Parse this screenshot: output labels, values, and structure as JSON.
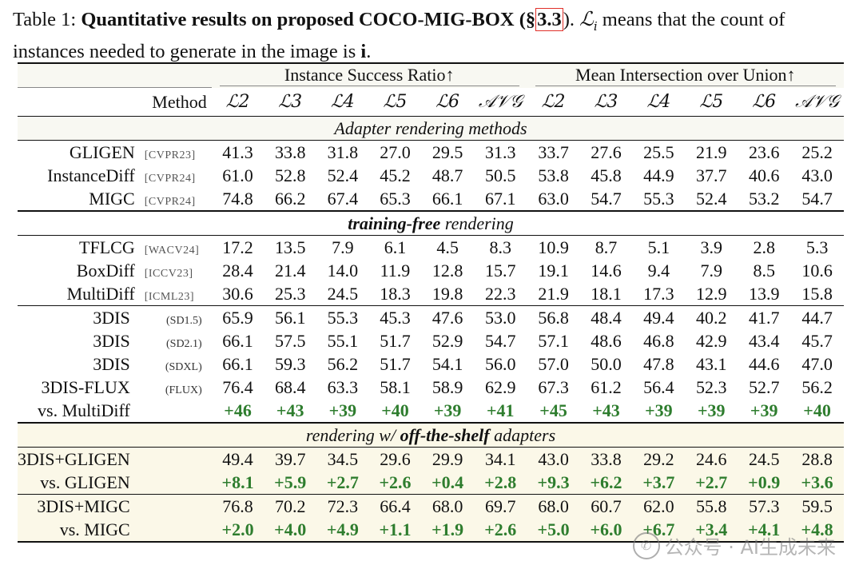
{
  "caption": {
    "label": "Table 1:",
    "title": "Quantitative results on proposed COCO-MIG-BOX (§",
    "ref": "3.3",
    "title_end": ").",
    "math": "ℒ",
    "math_sub": "i",
    "desc1": " means that the count of",
    "desc2": "instances needed to generate in the image is ",
    "desc_bold": "i",
    "desc_end": "."
  },
  "header": {
    "group1": "Instance Success Ratio↑",
    "group2": "Mean Intersection over Union↑",
    "method": "Method",
    "cols": [
      "ℒ2",
      "ℒ3",
      "ℒ4",
      "ℒ5",
      "ℒ6",
      "𝒜𝒱𝒢",
      "ℒ2",
      "ℒ3",
      "ℒ4",
      "ℒ5",
      "ℒ6",
      "𝒜𝒱𝒢"
    ]
  },
  "sections": {
    "adapter": "Adapter rendering methods",
    "training_free_bold": "training-free",
    "training_free_rest": " rendering",
    "offshelf_pre": "rendering w/ ",
    "offshelf_bold": "off-the-shelf",
    "offshelf_post": " adapters"
  },
  "rows": {
    "gligen": {
      "method": "GLIGEN",
      "venue": "[CVPR23]",
      "values": [
        "41.3",
        "33.8",
        "31.8",
        "27.0",
        "29.5",
        "31.3",
        "33.7",
        "27.6",
        "25.5",
        "21.9",
        "23.6",
        "25.2"
      ]
    },
    "instancediff": {
      "method": "InstanceDiff",
      "venue": "[CVPR24]",
      "values": [
        "61.0",
        "52.8",
        "52.4",
        "45.2",
        "48.7",
        "50.5",
        "53.8",
        "45.8",
        "44.9",
        "37.7",
        "40.6",
        "43.0"
      ]
    },
    "migc": {
      "method": "MIGC",
      "venue": "[CVPR24]",
      "values": [
        "74.8",
        "66.2",
        "67.4",
        "65.3",
        "66.1",
        "67.1",
        "63.0",
        "54.7",
        "55.3",
        "52.4",
        "53.2",
        "54.7"
      ]
    },
    "tflcg": {
      "method": "TFLCG",
      "venue": "[WACV24]",
      "values": [
        "17.2",
        "13.5",
        "7.9",
        "6.1",
        "4.5",
        "8.3",
        "10.9",
        "8.7",
        "5.1",
        "3.9",
        "2.8",
        "5.3"
      ]
    },
    "boxdiff": {
      "method": "BoxDiff",
      "venue": "[ICCV23]",
      "values": [
        "28.4",
        "21.4",
        "14.0",
        "11.9",
        "12.8",
        "15.7",
        "19.1",
        "14.6",
        "9.4",
        "7.9",
        "8.5",
        "10.6"
      ]
    },
    "multidiff": {
      "method": "MultiDiff",
      "venue": "[ICML23]",
      "values": [
        "30.6",
        "25.3",
        "24.5",
        "18.3",
        "19.8",
        "22.3",
        "21.9",
        "18.1",
        "17.3",
        "12.9",
        "13.9",
        "15.8"
      ]
    },
    "d3_sd15": {
      "method": "3DIS",
      "venue": "(SD1.5)",
      "values": [
        "65.9",
        "56.1",
        "55.3",
        "45.3",
        "47.6",
        "53.0",
        "56.8",
        "48.4",
        "49.4",
        "40.2",
        "41.7",
        "44.7"
      ]
    },
    "d3_sd21": {
      "method": "3DIS",
      "venue": "(SD2.1)",
      "values": [
        "66.1",
        "57.5",
        "55.1",
        "51.7",
        "52.9",
        "54.7",
        "57.1",
        "48.6",
        "46.8",
        "42.9",
        "43.4",
        "45.7"
      ]
    },
    "d3_sdxl": {
      "method": "3DIS",
      "venue": "(SDXL)",
      "values": [
        "66.1",
        "59.3",
        "56.2",
        "51.7",
        "54.1",
        "56.0",
        "57.0",
        "50.0",
        "47.8",
        "43.1",
        "44.6",
        "47.0"
      ]
    },
    "d3_flux": {
      "method": "3DIS-FLUX",
      "venue": "(FLUX)",
      "values": [
        "76.4",
        "68.4",
        "63.3",
        "58.1",
        "58.9",
        "62.9",
        "67.3",
        "61.2",
        "56.4",
        "52.3",
        "52.7",
        "56.2"
      ]
    },
    "vs_multidiff": {
      "method": "vs. MultiDiff",
      "values": [
        "+46",
        "+43",
        "+39",
        "+40",
        "+39",
        "+41",
        "+45",
        "+43",
        "+39",
        "+39",
        "+39",
        "+40"
      ]
    },
    "d3_gligen": {
      "method": "3DIS+GLIGEN",
      "values": [
        "49.4",
        "39.7",
        "34.5",
        "29.6",
        "29.9",
        "34.1",
        "43.0",
        "33.8",
        "29.2",
        "24.6",
        "24.5",
        "28.8"
      ]
    },
    "vs_gligen": {
      "method": "vs. GLIGEN",
      "values": [
        "+8.1",
        "+5.9",
        "+2.7",
        "+2.6",
        "+0.4",
        "+2.8",
        "+9.3",
        "+6.2",
        "+3.7",
        "+2.7",
        "+0.9",
        "+3.6"
      ]
    },
    "d3_migc": {
      "method": "3DIS+MIGC",
      "values": [
        "76.8",
        "70.2",
        "72.3",
        "66.4",
        "68.0",
        "69.7",
        "68.0",
        "60.7",
        "62.0",
        "55.8",
        "57.3",
        "59.5"
      ]
    },
    "vs_migc": {
      "method": "vs. MIGC",
      "values": [
        "+2.0",
        "+4.0",
        "+4.9",
        "+1.1",
        "+1.9",
        "+2.6",
        "+5.0",
        "+6.0",
        "+6.7",
        "+3.4",
        "+4.1",
        "+4.8"
      ]
    }
  },
  "watermark": {
    "text": "公众号 · AI生成未来",
    "icon": "wechat-icon"
  }
}
